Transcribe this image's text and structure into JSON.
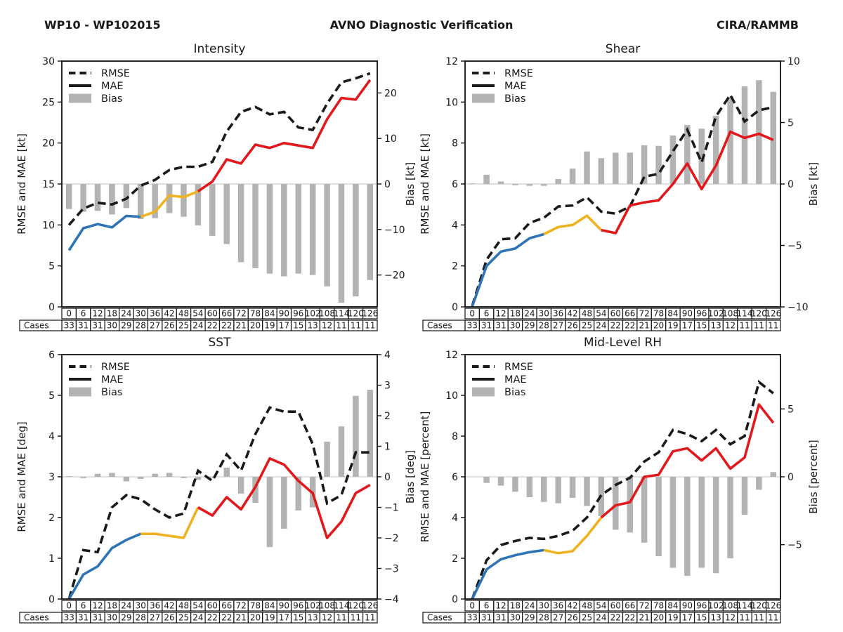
{
  "header": {
    "left": "WP10 - WP102015",
    "center": "AVNO Diagnostic Verification",
    "right": "CIRA/RAMMB"
  },
  "legend": {
    "rmse": "RMSE",
    "mae": "MAE",
    "bias": "Bias"
  },
  "cases_label": "Cases",
  "hours": [
    0,
    6,
    12,
    18,
    24,
    30,
    36,
    42,
    48,
    54,
    60,
    66,
    72,
    78,
    84,
    90,
    96,
    102,
    108,
    114,
    120,
    126
  ],
  "cases": [
    33,
    31,
    31,
    30,
    29,
    28,
    27,
    26,
    25,
    24,
    22,
    22,
    21,
    20,
    19,
    17,
    15,
    13,
    12,
    11,
    11,
    11
  ],
  "colors": {
    "rmse_line": "#1a1a1a",
    "mae_early": "#2e74b5",
    "mae_mid": "#efb322",
    "mae_late": "#e2191c",
    "bias_bar": "#b3b3b3",
    "zero_line": "#cccccc",
    "border": "#111111",
    "text": "#1a1a1a"
  },
  "mae_color_breaks": {
    "early_end_hour": 30,
    "mid_end_hour": 54
  },
  "chart_data": [
    {
      "key": "intensity",
      "type": "line+bar",
      "title": "Intensity",
      "ylabel_left": "RMSE and MAE [kt]",
      "ylabel_right": "Bias [kt]",
      "ylim_left": [
        0,
        30
      ],
      "yticks_left": [
        0,
        5,
        10,
        15,
        20,
        25,
        30
      ],
      "ylim_right": [
        -27,
        27
      ],
      "yticks_right": [
        -20,
        -10,
        0,
        10,
        20
      ],
      "legend_position": "upper left",
      "grid": false,
      "rmse": [
        10.0,
        12.0,
        12.7,
        12.5,
        13.2,
        14.8,
        15.5,
        16.7,
        17.1,
        17.1,
        17.7,
        21.4,
        23.8,
        24.4,
        23.5,
        23.8,
        21.9,
        21.6,
        24.8,
        27.4,
        27.9,
        28.5
      ],
      "mae": [
        6.9,
        9.6,
        10.1,
        9.7,
        11.1,
        11.0,
        11.6,
        13.6,
        13.4,
        14.1,
        15.3,
        18.0,
        17.5,
        19.8,
        19.4,
        20.0,
        19.7,
        19.4,
        22.9,
        25.5,
        25.3,
        27.7
      ],
      "bias": [
        -5.5,
        -6.1,
        -5.9,
        -6.7,
        -5.3,
        -7.7,
        -7.5,
        -6.4,
        -7.2,
        -9.1,
        -11.4,
        -13.2,
        -17.2,
        -18.5,
        -19.7,
        -20.3,
        -19.7,
        -20.0,
        -22.5,
        -26.1,
        -24.7,
        -21.1
      ]
    },
    {
      "key": "shear",
      "type": "line+bar",
      "title": "Shear",
      "ylabel_left": "RMSE and MAE [kt]",
      "ylabel_right": "Bias [kt]",
      "ylim_left": [
        0,
        12
      ],
      "yticks_left": [
        0,
        2,
        4,
        6,
        8,
        10,
        12
      ],
      "ylim_right": [
        -10,
        10
      ],
      "yticks_right": [
        -10,
        -5,
        0,
        5,
        10
      ],
      "legend_position": "upper left",
      "grid": false,
      "rmse": [
        0.05,
        2.3,
        3.3,
        3.35,
        4.1,
        4.35,
        4.9,
        4.95,
        5.35,
        4.65,
        4.55,
        4.9,
        6.35,
        6.5,
        7.6,
        8.65,
        7.05,
        9.3,
        10.35,
        9.05,
        9.6,
        9.75
      ],
      "mae": [
        0.02,
        2.0,
        2.7,
        2.85,
        3.35,
        3.55,
        3.9,
        4.0,
        4.45,
        3.75,
        3.6,
        4.95,
        5.1,
        5.2,
        6.0,
        7.0,
        5.75,
        6.9,
        8.55,
        8.25,
        8.45,
        8.15
      ],
      "bias": [
        0.05,
        0.75,
        0.2,
        -0.1,
        -0.15,
        -0.15,
        0.4,
        1.25,
        2.65,
        2.1,
        2.55,
        2.55,
        3.15,
        3.1,
        3.95,
        4.8,
        4.5,
        5.55,
        7.1,
        7.95,
        8.45,
        7.5
      ]
    },
    {
      "key": "sst",
      "type": "line+bar",
      "title": "SST",
      "ylabel_left": "RMSE and MAE [deg]",
      "ylabel_right": "Bias [deg]",
      "ylim_left": [
        0,
        6
      ],
      "yticks_left": [
        0,
        1,
        2,
        3,
        4,
        5,
        6
      ],
      "ylim_right": [
        -4,
        4
      ],
      "yticks_right": [
        -4,
        -3,
        -2,
        -1,
        0,
        1,
        2,
        3,
        4
      ],
      "legend_position": "upper left",
      "grid": false,
      "rmse": [
        0.0,
        1.2,
        1.15,
        2.25,
        2.55,
        2.45,
        2.2,
        2.0,
        2.1,
        3.15,
        2.9,
        3.55,
        3.15,
        4.05,
        4.7,
        4.6,
        4.6,
        3.8,
        2.35,
        2.55,
        3.6,
        3.6
      ],
      "mae": [
        0.0,
        0.6,
        0.8,
        1.25,
        1.45,
        1.6,
        1.6,
        1.55,
        1.5,
        2.25,
        2.05,
        2.5,
        2.2,
        2.75,
        3.45,
        3.3,
        2.9,
        2.6,
        1.5,
        1.9,
        2.6,
        2.8
      ],
      "bias": [
        0.02,
        -0.04,
        0.1,
        0.13,
        -0.15,
        -0.07,
        0.1,
        0.13,
        -0.04,
        -0.1,
        -0.02,
        0.3,
        -0.55,
        -0.85,
        -2.3,
        -1.7,
        -1.1,
        -1.0,
        1.15,
        1.65,
        2.65,
        2.85
      ]
    },
    {
      "key": "midlevel_rh",
      "type": "line+bar",
      "title": "Mid-Level RH",
      "ylabel_left": "RMSE and MAE [percent]",
      "ylabel_right": "Bias [percent]",
      "ylim_left": [
        0,
        12
      ],
      "yticks_left": [
        0,
        2,
        4,
        6,
        8,
        10,
        12
      ],
      "ylim_right": [
        -9,
        9
      ],
      "yticks_right": [
        -5,
        0,
        5
      ],
      "legend_position": "upper left",
      "grid": false,
      "rmse": [
        0.0,
        1.9,
        2.65,
        2.85,
        3.0,
        2.95,
        3.1,
        3.35,
        4.0,
        5.1,
        5.6,
        5.95,
        6.75,
        7.2,
        8.3,
        8.1,
        7.75,
        8.3,
        7.6,
        8.0,
        10.65,
        10.1
      ],
      "mae": [
        0.0,
        1.45,
        1.95,
        2.15,
        2.3,
        2.4,
        2.25,
        2.35,
        3.1,
        4.0,
        4.6,
        4.75,
        6.0,
        6.1,
        7.25,
        7.4,
        6.8,
        7.4,
        6.4,
        6.95,
        9.55,
        8.65
      ],
      "bias": [
        0.0,
        -0.45,
        -0.65,
        -1.1,
        -1.5,
        -1.85,
        -1.95,
        -1.55,
        -2.15,
        -2.9,
        -3.9,
        -4.1,
        -4.85,
        -5.85,
        -6.7,
        -7.3,
        -6.7,
        -7.1,
        -6.0,
        -2.8,
        -0.95,
        0.35
      ]
    }
  ]
}
